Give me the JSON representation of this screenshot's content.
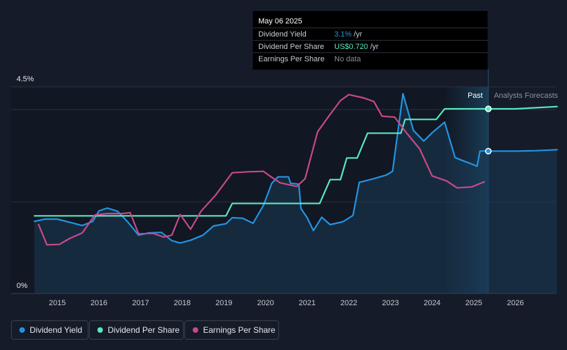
{
  "chart_data": {
    "type": "line",
    "title": "",
    "xlabel": "",
    "ylabel": "",
    "x_range": [
      2014.4,
      2027.0
    ],
    "ylim": [
      0,
      4.5
    ],
    "y_tick_labels": [
      {
        "value": 4.5,
        "label": "4.5%"
      },
      {
        "value": 0,
        "label": "0%"
      }
    ],
    "x_ticks": [
      2015,
      2016,
      2017,
      2018,
      2019,
      2020,
      2021,
      2022,
      2023,
      2024,
      2025,
      2026
    ],
    "x_tick_labels": [
      "2015",
      "2016",
      "2017",
      "2018",
      "2019",
      "2020",
      "2021",
      "2022",
      "2023",
      "2024",
      "2025",
      "2026"
    ],
    "past_start": 2024.33,
    "today": 2025.35,
    "past_label": "Past",
    "forecast_label": "Analysts Forecasts",
    "series": [
      {
        "name": "Dividend Yield",
        "color": "#2394e2",
        "area": true,
        "values": [
          [
            2014.45,
            1.57
          ],
          [
            2014.7,
            1.62
          ],
          [
            2015.0,
            1.62
          ],
          [
            2015.3,
            1.55
          ],
          [
            2015.6,
            1.48
          ],
          [
            2015.85,
            1.57
          ],
          [
            2016.0,
            1.8
          ],
          [
            2016.2,
            1.86
          ],
          [
            2016.45,
            1.79
          ],
          [
            2016.7,
            1.55
          ],
          [
            2016.95,
            1.27
          ],
          [
            2017.2,
            1.32
          ],
          [
            2017.5,
            1.33
          ],
          [
            2017.75,
            1.15
          ],
          [
            2017.95,
            1.1
          ],
          [
            2018.2,
            1.16
          ],
          [
            2018.5,
            1.27
          ],
          [
            2018.75,
            1.47
          ],
          [
            2019.05,
            1.52
          ],
          [
            2019.2,
            1.65
          ],
          [
            2019.45,
            1.64
          ],
          [
            2019.7,
            1.53
          ],
          [
            2019.95,
            1.92
          ],
          [
            2020.15,
            2.4
          ],
          [
            2020.3,
            2.54
          ],
          [
            2020.55,
            2.54
          ],
          [
            2020.6,
            2.4
          ],
          [
            2020.8,
            2.38
          ],
          [
            2020.85,
            1.85
          ],
          [
            2021.0,
            1.65
          ],
          [
            2021.15,
            1.37
          ],
          [
            2021.35,
            1.66
          ],
          [
            2021.55,
            1.5
          ],
          [
            2021.85,
            1.56
          ],
          [
            2022.1,
            1.7
          ],
          [
            2022.25,
            2.42
          ],
          [
            2022.6,
            2.5
          ],
          [
            2022.9,
            2.58
          ],
          [
            2023.05,
            2.66
          ],
          [
            2023.3,
            4.35
          ],
          [
            2023.55,
            3.55
          ],
          [
            2023.8,
            3.32
          ],
          [
            2024.0,
            3.5
          ],
          [
            2024.3,
            3.73
          ],
          [
            2024.55,
            2.96
          ],
          [
            2024.8,
            2.87
          ],
          [
            2024.95,
            2.82
          ],
          [
            2025.08,
            2.77
          ],
          [
            2025.15,
            3.1
          ],
          [
            2025.35,
            3.1
          ],
          [
            2026.0,
            3.1
          ],
          [
            2026.5,
            3.11
          ],
          [
            2027.0,
            3.13
          ]
        ]
      },
      {
        "name": "Dividend Per Share",
        "color": "#5ae8c2",
        "area": false,
        "values": [
          [
            2014.45,
            1.69
          ],
          [
            2019.05,
            1.69
          ],
          [
            2019.2,
            1.96
          ],
          [
            2020.9,
            1.96
          ],
          [
            2021.3,
            1.96
          ],
          [
            2021.55,
            2.48
          ],
          [
            2021.8,
            2.48
          ],
          [
            2021.95,
            2.95
          ],
          [
            2022.2,
            2.95
          ],
          [
            2022.45,
            3.49
          ],
          [
            2023.25,
            3.49
          ],
          [
            2023.35,
            3.79
          ],
          [
            2024.1,
            3.79
          ],
          [
            2024.3,
            4.02
          ],
          [
            2025.35,
            4.02
          ],
          [
            2026.0,
            4.02
          ],
          [
            2027.0,
            4.07
          ]
        ]
      },
      {
        "name": "Earnings Per Share",
        "color": "#c8498a",
        "area": false,
        "values": [
          [
            2014.55,
            1.5
          ],
          [
            2014.75,
            1.06
          ],
          [
            2015.05,
            1.07
          ],
          [
            2015.3,
            1.2
          ],
          [
            2015.6,
            1.32
          ],
          [
            2015.9,
            1.71
          ],
          [
            2016.2,
            1.74
          ],
          [
            2016.55,
            1.74
          ],
          [
            2016.75,
            1.76
          ],
          [
            2016.95,
            1.3
          ],
          [
            2017.3,
            1.31
          ],
          [
            2017.55,
            1.23
          ],
          [
            2017.75,
            1.27
          ],
          [
            2017.95,
            1.72
          ],
          [
            2018.2,
            1.4
          ],
          [
            2018.45,
            1.79
          ],
          [
            2018.8,
            2.14
          ],
          [
            2019.2,
            2.63
          ],
          [
            2019.6,
            2.65
          ],
          [
            2019.95,
            2.66
          ],
          [
            2020.1,
            2.56
          ],
          [
            2020.35,
            2.41
          ],
          [
            2020.75,
            2.33
          ],
          [
            2020.95,
            2.5
          ],
          [
            2021.25,
            3.52
          ],
          [
            2021.55,
            3.9
          ],
          [
            2021.8,
            4.2
          ],
          [
            2022.0,
            4.33
          ],
          [
            2022.35,
            4.26
          ],
          [
            2022.6,
            4.18
          ],
          [
            2022.8,
            3.86
          ],
          [
            2023.1,
            3.84
          ],
          [
            2023.4,
            3.48
          ],
          [
            2023.7,
            3.15
          ],
          [
            2024.0,
            2.56
          ],
          [
            2024.35,
            2.45
          ],
          [
            2024.6,
            2.3
          ],
          [
            2024.95,
            2.32
          ],
          [
            2025.25,
            2.43
          ]
        ]
      }
    ],
    "markers": [
      {
        "series": "Dividend Per Share",
        "x": 2025.35,
        "y": 4.02
      },
      {
        "series": "Dividend Yield",
        "x": 2025.35,
        "y": 3.1
      }
    ],
    "legend_position": "bottom-left",
    "grid": true
  },
  "tooltip": {
    "date": "May 06 2025",
    "rows": [
      {
        "label": "Dividend Yield",
        "value": "3.1%",
        "unit": " /yr",
        "color": "#2394e2"
      },
      {
        "label": "Dividend Per Share",
        "value": "US$0.720",
        "unit": " /yr",
        "color": "#5ae8c2"
      },
      {
        "label": "Earnings Per Share",
        "value": "No data",
        "unit": "",
        "color": "#8a8f99"
      }
    ]
  },
  "legend": [
    {
      "label": "Dividend Yield",
      "color": "#2394e2"
    },
    {
      "label": "Dividend Per Share",
      "color": "#5ae8c2"
    },
    {
      "label": "Earnings Per Share",
      "color": "#c8498a"
    }
  ]
}
